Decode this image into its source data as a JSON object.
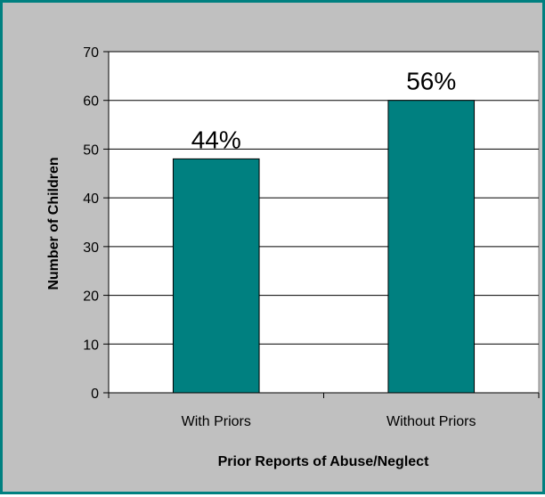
{
  "chart_data": {
    "type": "bar",
    "categories": [
      "With Priors",
      "Without Priors"
    ],
    "values": [
      48,
      60
    ],
    "data_labels": [
      "44%",
      "56%"
    ],
    "title": "",
    "xlabel": "Prior Reports of Abuse/Neglect",
    "ylabel": "Number of Children",
    "ylim": [
      0,
      70
    ],
    "y_ticks": [
      0,
      10,
      20,
      30,
      40,
      50,
      60,
      70
    ],
    "grid": true,
    "legend": "none"
  },
  "colors": {
    "bar": "#008080",
    "bar_outline": "#000000",
    "plot_background": "#ffffff",
    "chart_background": "#c0c0c0",
    "frame": "#008080",
    "gridline": "#000000"
  }
}
